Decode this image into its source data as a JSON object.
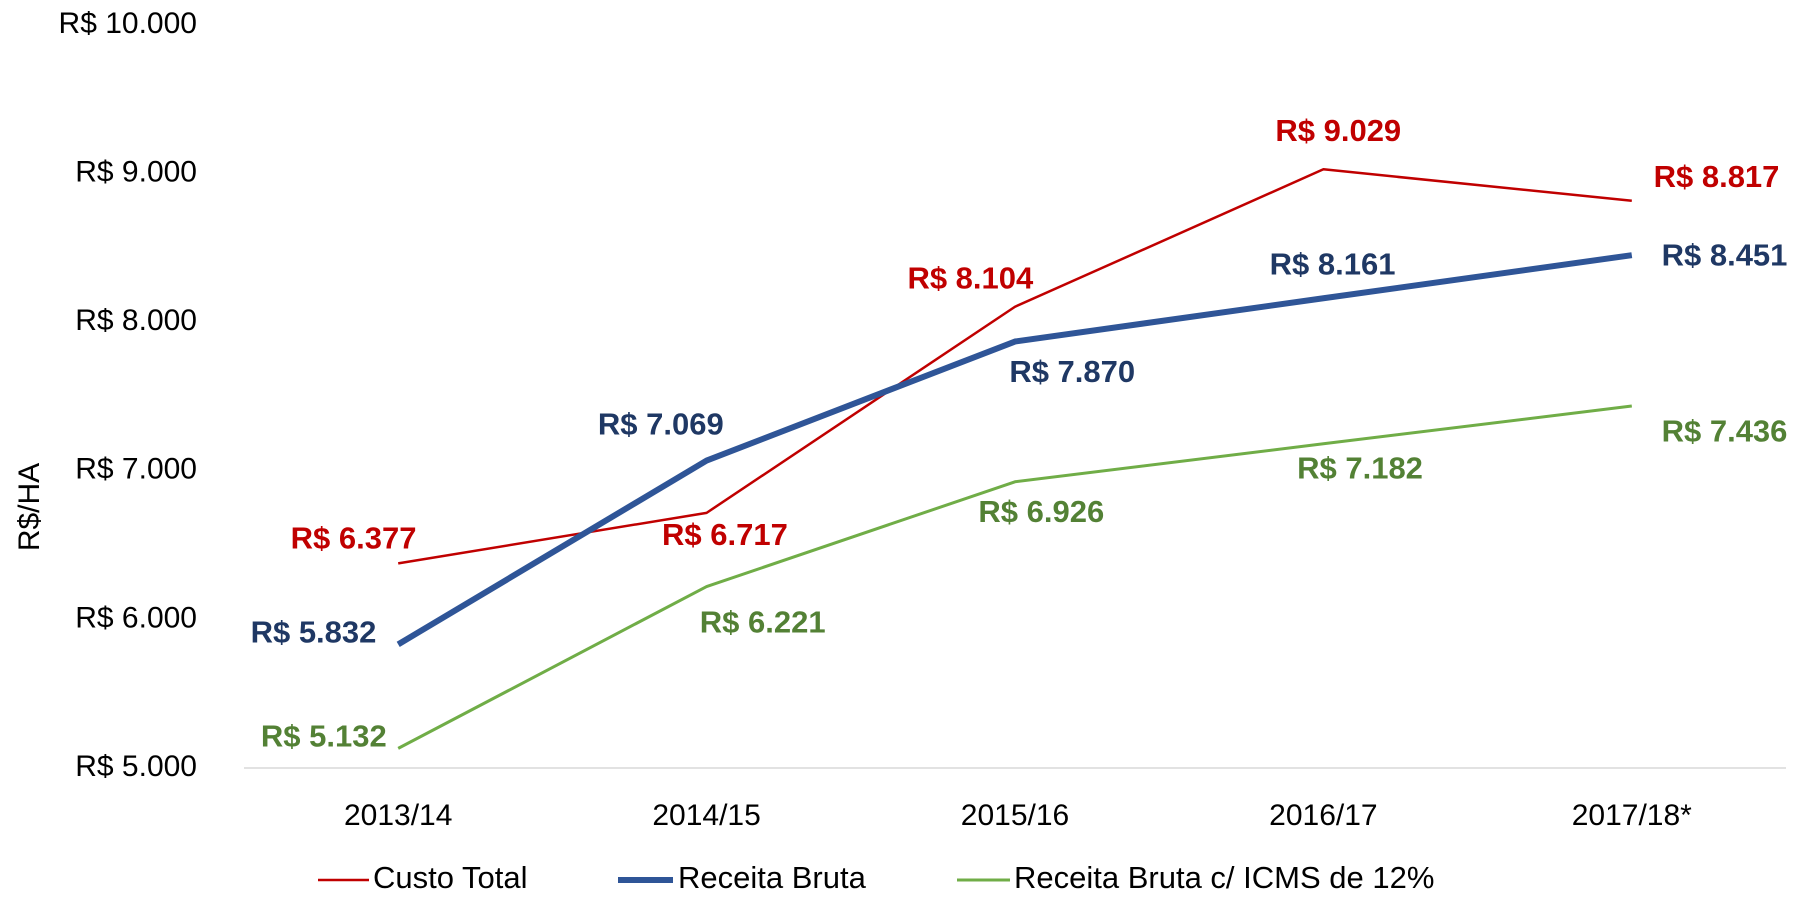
{
  "chart_data": {
    "type": "line",
    "y_label": "R$/HA",
    "categories": [
      "2013/14",
      "2014/15",
      "2015/16",
      "2016/17",
      "2017/18*"
    ],
    "series": [
      {
        "name": "Custo Total",
        "color": "#c00000",
        "values": [
          6377,
          6717,
          8104,
          9029,
          8817
        ],
        "value_labels": [
          "R$ 6.377",
          "R$ 6.717",
          "R$ 8.104",
          "R$ 9.029",
          "R$ 8.817"
        ]
      },
      {
        "name": "Receita Bruta",
        "color": "#2f5597",
        "values": [
          5832,
          7069,
          7870,
          8161,
          8451
        ],
        "value_labels": [
          "R$ 5.832",
          "R$ 7.069",
          "R$ 7.870",
          "R$ 8.161",
          "R$ 8.451"
        ]
      },
      {
        "name": "Receita Bruta c/ ICMS de 12%",
        "color": "#70ad47",
        "values": [
          5132,
          6221,
          6926,
          7182,
          7436
        ],
        "value_labels": [
          "R$ 5.132",
          "R$ 6.221",
          "R$ 6.926",
          "R$ 7.182",
          "R$ 7.436"
        ]
      }
    ],
    "ylim": [
      5000,
      10000
    ],
    "yticks": [
      {
        "value": 5000,
        "label": "R$ 5.000"
      },
      {
        "value": 6000,
        "label": "R$ 6.000"
      },
      {
        "value": 7000,
        "label": "R$ 7.000"
      },
      {
        "value": 8000,
        "label": "R$ 8.000"
      },
      {
        "value": 9000,
        "label": "R$ 9.000"
      },
      {
        "value": 10000,
        "label": "R$ 10.000"
      }
    ],
    "grid": false,
    "legend": "bottom"
  }
}
